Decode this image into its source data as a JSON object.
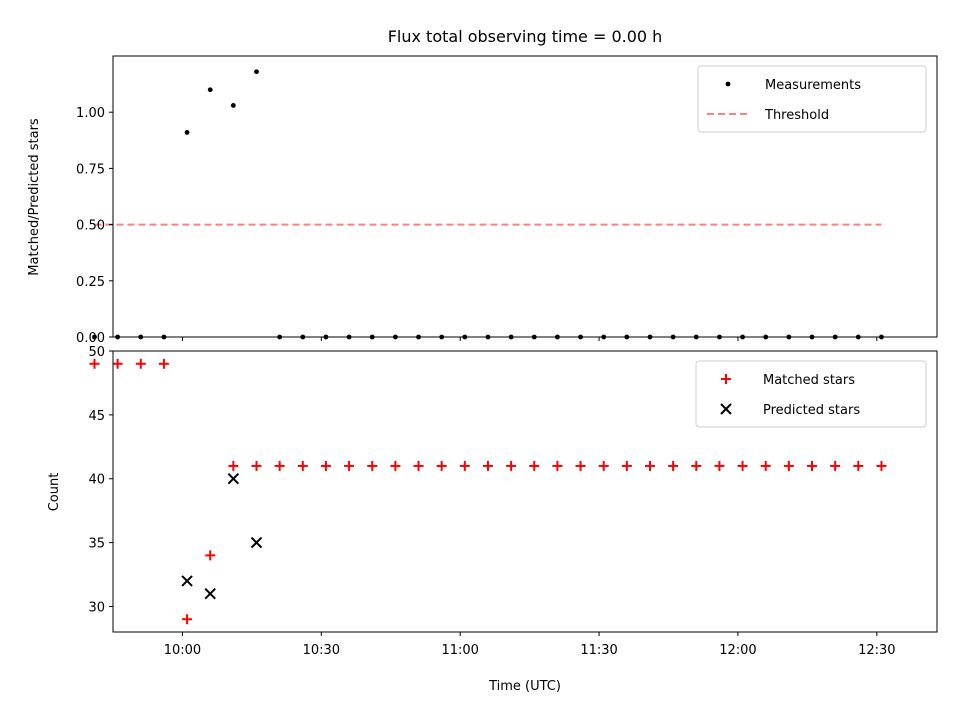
{
  "chart_data": [
    {
      "type": "scatter",
      "title": "Flux total observing time = 0.00 h",
      "xlabel": "",
      "ylabel": "Matched/Predicted stars",
      "ylim": [
        0.0,
        1.25
      ],
      "yticks": [
        "0.00",
        "0.25",
        "0.50",
        "0.75",
        "1.00"
      ],
      "legend_position": "top-right",
      "series": [
        {
          "name": "Measurements",
          "marker": "dot",
          "color": "#000000",
          "x": [
            "09:41",
            "09:46",
            "09:51",
            "09:56",
            "10:01",
            "10:06",
            "10:11",
            "10:16",
            "10:21",
            "10:26",
            "10:31",
            "10:36",
            "10:41",
            "10:46",
            "10:51",
            "10:56",
            "11:01",
            "11:06",
            "11:11",
            "11:16",
            "11:21",
            "11:26",
            "11:31",
            "11:36",
            "11:41",
            "11:46",
            "11:51",
            "11:56",
            "12:01",
            "12:06",
            "12:11",
            "12:16",
            "12:21",
            "12:26",
            "12:31"
          ],
          "y": [
            0,
            0,
            0,
            0,
            0.91,
            1.1,
            1.03,
            1.18,
            0,
            0,
            0,
            0,
            0,
            0,
            0,
            0,
            0,
            0,
            0,
            0,
            0,
            0,
            0,
            0,
            0,
            0,
            0,
            0,
            0,
            0,
            0,
            0,
            0,
            0,
            0
          ]
        },
        {
          "name": "Threshold",
          "marker": "dashed-line",
          "color": "#ff7f7f",
          "x": [
            "09:41",
            "12:31"
          ],
          "y": [
            0.5,
            0.5
          ]
        }
      ]
    },
    {
      "type": "scatter",
      "title": "",
      "xlabel": "Time (UTC)",
      "ylabel": "Count",
      "ylim": [
        28,
        50
      ],
      "yticks": [
        "30",
        "35",
        "40",
        "45",
        "50"
      ],
      "xticks": [
        "10:00",
        "10:30",
        "11:00",
        "11:30",
        "12:00",
        "12:30"
      ],
      "legend_position": "top-right",
      "series": [
        {
          "name": "Matched stars",
          "marker": "plus",
          "color": "#ff0000",
          "x": [
            "09:41",
            "09:46",
            "09:51",
            "09:56",
            "10:01",
            "10:06",
            "10:11",
            "10:16",
            "10:21",
            "10:26",
            "10:31",
            "10:36",
            "10:41",
            "10:46",
            "10:51",
            "10:56",
            "11:01",
            "11:06",
            "11:11",
            "11:16",
            "11:21",
            "11:26",
            "11:31",
            "11:36",
            "11:41",
            "11:46",
            "11:51",
            "11:56",
            "12:01",
            "12:06",
            "12:11",
            "12:16",
            "12:21",
            "12:26",
            "12:31"
          ],
          "y": [
            49,
            49,
            49,
            49,
            29,
            34,
            41,
            41,
            41,
            41,
            41,
            41,
            41,
            41,
            41,
            41,
            41,
            41,
            41,
            41,
            41,
            41,
            41,
            41,
            41,
            41,
            41,
            41,
            41,
            41,
            41,
            41,
            41,
            41,
            41
          ]
        },
        {
          "name": "Predicted stars",
          "marker": "x",
          "color": "#000000",
          "x": [
            "10:01",
            "10:06",
            "10:11",
            "10:16"
          ],
          "y": [
            32,
            31,
            40,
            35
          ]
        }
      ]
    }
  ]
}
